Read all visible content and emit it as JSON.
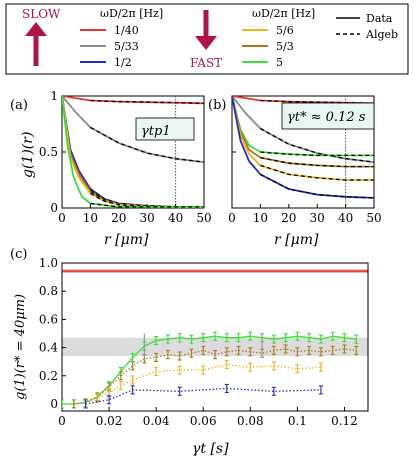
{
  "legend": {
    "slow_label": "SLOW",
    "fast_label": "FAST",
    "omega_header_left": "ωD/2π [Hz]",
    "omega_header_right": "ωD/2π [Hz]",
    "left_items": [
      {
        "label": "1/40",
        "color": "#e8382e"
      },
      {
        "label": "5/33",
        "color": "#8a8a8a"
      },
      {
        "label": "1/2",
        "color": "#1f2fbf"
      }
    ],
    "right_items": [
      {
        "label": "5/6",
        "color": "#f0b21a"
      },
      {
        "label": "5/3",
        "color": "#a9781f"
      },
      {
        "label": "5",
        "color": "#38e038"
      }
    ],
    "style_items": [
      {
        "label": "Data",
        "dash": "solid"
      },
      {
        "label": "Algeb",
        "dash": "dashed"
      }
    ],
    "colors": {
      "slow_arrow": "#b0124a",
      "fast_arrow": "#b0124a",
      "text_accent": "#b0124a"
    }
  },
  "chart_data": [
    {
      "panel": "(a)",
      "type": "line",
      "xlabel": "r [μm]",
      "ylabel": "g(1)(r)",
      "xlim": [
        0,
        50
      ],
      "ylim": [
        0,
        1
      ],
      "x_ticks": [
        "0",
        "10",
        "20",
        "30",
        "40",
        "50"
      ],
      "y_ticks": [
        "0",
        "0.5",
        "1"
      ],
      "annotation": "γtp1",
      "vline_x": 40,
      "series": [
        {
          "color": "#e8382e",
          "x": [
            0,
            10,
            20,
            30,
            40,
            50
          ],
          "y": [
            1.0,
            0.96,
            0.95,
            0.945,
            0.94,
            0.935
          ]
        },
        {
          "color": "#8a8a8a",
          "x": [
            0,
            5,
            10,
            20,
            30,
            40,
            50
          ],
          "y": [
            1.0,
            0.85,
            0.72,
            0.58,
            0.49,
            0.44,
            0.41
          ]
        },
        {
          "color": "#1f2fbf",
          "x": [
            0,
            3,
            6,
            10,
            15,
            20,
            30,
            40,
            50
          ],
          "y": [
            1.0,
            0.52,
            0.33,
            0.17,
            0.08,
            0.04,
            0.02,
            0.01,
            0.01
          ]
        },
        {
          "color": "#a9781f",
          "x": [
            0,
            3,
            6,
            10,
            15,
            20,
            30,
            40,
            50
          ],
          "y": [
            1.0,
            0.48,
            0.3,
            0.15,
            0.07,
            0.03,
            0.02,
            0.01,
            0.01
          ]
        },
        {
          "color": "#f0b21a",
          "x": [
            0,
            3,
            6,
            10,
            15,
            20,
            30,
            40,
            50
          ],
          "y": [
            1.0,
            0.45,
            0.27,
            0.13,
            0.06,
            0.03,
            0.01,
            0.01,
            0.01
          ]
        },
        {
          "color": "#38e038",
          "x": [
            0,
            2,
            4,
            7,
            10,
            20,
            30,
            40,
            50
          ],
          "y": [
            1.0,
            0.55,
            0.28,
            0.1,
            0.04,
            0.01,
            0.01,
            0.01,
            0.01
          ]
        }
      ]
    },
    {
      "panel": "(b)",
      "type": "line",
      "xlabel": "r [μm]",
      "ylabel": "",
      "xlim": [
        0,
        50
      ],
      "ylim": [
        0,
        1
      ],
      "x_ticks": [
        "0",
        "10",
        "20",
        "30",
        "40",
        "50"
      ],
      "y_ticks": [],
      "annotation": "γt* ≈ 0.12 s",
      "vline_x": 40,
      "series": [
        {
          "color": "#e8382e",
          "x": [
            0,
            10,
            20,
            30,
            40,
            50
          ],
          "y": [
            1.0,
            0.96,
            0.95,
            0.945,
            0.94,
            0.935
          ]
        },
        {
          "color": "#8a8a8a",
          "x": [
            0,
            5,
            10,
            20,
            30,
            40,
            50
          ],
          "y": [
            1.0,
            0.84,
            0.71,
            0.57,
            0.49,
            0.44,
            0.41
          ]
        },
        {
          "color": "#38e038",
          "x": [
            0,
            3,
            6,
            10,
            20,
            30,
            40,
            50
          ],
          "y": [
            1.0,
            0.7,
            0.56,
            0.5,
            0.48,
            0.47,
            0.47,
            0.47
          ]
        },
        {
          "color": "#a9781f",
          "x": [
            0,
            3,
            6,
            10,
            20,
            30,
            40,
            50
          ],
          "y": [
            1.0,
            0.68,
            0.52,
            0.45,
            0.4,
            0.38,
            0.37,
            0.37
          ]
        },
        {
          "color": "#f0b21a",
          "x": [
            0,
            3,
            6,
            10,
            20,
            30,
            40,
            50
          ],
          "y": [
            1.0,
            0.65,
            0.48,
            0.38,
            0.3,
            0.27,
            0.25,
            0.25
          ]
        },
        {
          "color": "#1f2fbf",
          "x": [
            0,
            3,
            6,
            10,
            20,
            30,
            40,
            50
          ],
          "y": [
            1.0,
            0.6,
            0.42,
            0.3,
            0.17,
            0.12,
            0.1,
            0.09
          ]
        }
      ]
    },
    {
      "panel": "(c)",
      "type": "line",
      "xlabel": "γt [s]",
      "ylabel": "g(1)(r* = 40μm)",
      "xlim": [
        0,
        0.13
      ],
      "ylim": [
        -0.05,
        1.0
      ],
      "x_ticks": [
        "0",
        "0.02",
        "0.04",
        "0.06",
        "0.08",
        "0.1",
        "0.12"
      ],
      "x_tick_values": [
        0,
        0.02,
        0.04,
        0.06,
        0.08,
        0.1,
        0.12
      ],
      "y_ticks": [
        "0",
        "0.2",
        "0.4",
        "0.6",
        "0.8",
        "1.0"
      ],
      "y_tick_values": [
        0,
        0.2,
        0.4,
        0.6,
        0.8,
        1.0
      ],
      "shaded_band": [
        0.34,
        0.47
      ],
      "red_band": [
        0.93,
        0.955
      ],
      "series": [
        {
          "color": "#38e038",
          "style": "solid",
          "x": [
            0,
            0.005,
            0.01,
            0.015,
            0.02,
            0.025,
            0.03,
            0.035,
            0.04,
            0.045,
            0.05,
            0.055,
            0.06,
            0.065,
            0.07,
            0.075,
            0.08,
            0.085,
            0.09,
            0.095,
            0.1,
            0.105,
            0.11,
            0.115,
            0.12,
            0.125
          ],
          "y": [
            0,
            0,
            0.01,
            0.05,
            0.13,
            0.23,
            0.33,
            0.41,
            0.45,
            0.46,
            0.47,
            0.46,
            0.47,
            0.48,
            0.47,
            0.47,
            0.48,
            0.47,
            0.46,
            0.47,
            0.48,
            0.47,
            0.46,
            0.48,
            0.47,
            0.46
          ]
        },
        {
          "color": "#a9781f",
          "style": "dotted",
          "x": [
            0.005,
            0.01,
            0.015,
            0.02,
            0.025,
            0.03,
            0.035,
            0.04,
            0.045,
            0.05,
            0.055,
            0.06,
            0.065,
            0.07,
            0.075,
            0.08,
            0.085,
            0.09,
            0.095,
            0.1,
            0.105,
            0.11,
            0.115,
            0.12,
            0.125
          ],
          "y": [
            0,
            0.01,
            0.05,
            0.12,
            0.2,
            0.27,
            0.32,
            0.33,
            0.35,
            0.34,
            0.36,
            0.38,
            0.35,
            0.37,
            0.38,
            0.37,
            0.36,
            0.38,
            0.39,
            0.37,
            0.38,
            0.37,
            0.38,
            0.39,
            0.38
          ]
        },
        {
          "color": "#f0b21a",
          "style": "dotted",
          "x": [
            0.01,
            0.015,
            0.02,
            0.025,
            0.03,
            0.04,
            0.05,
            0.06,
            0.07,
            0.08,
            0.09,
            0.1,
            0.11
          ],
          "y": [
            0.01,
            0.04,
            0.08,
            0.13,
            0.17,
            0.23,
            0.24,
            0.24,
            0.28,
            0.26,
            0.27,
            0.25,
            0.26
          ]
        },
        {
          "color": "#1f2fbf",
          "style": "dotted",
          "x": [
            0.01,
            0.02,
            0.03,
            0.05,
            0.07,
            0.09,
            0.11
          ],
          "y": [
            0.0,
            0.03,
            0.1,
            0.09,
            0.11,
            0.09,
            0.1
          ]
        }
      ]
    }
  ]
}
